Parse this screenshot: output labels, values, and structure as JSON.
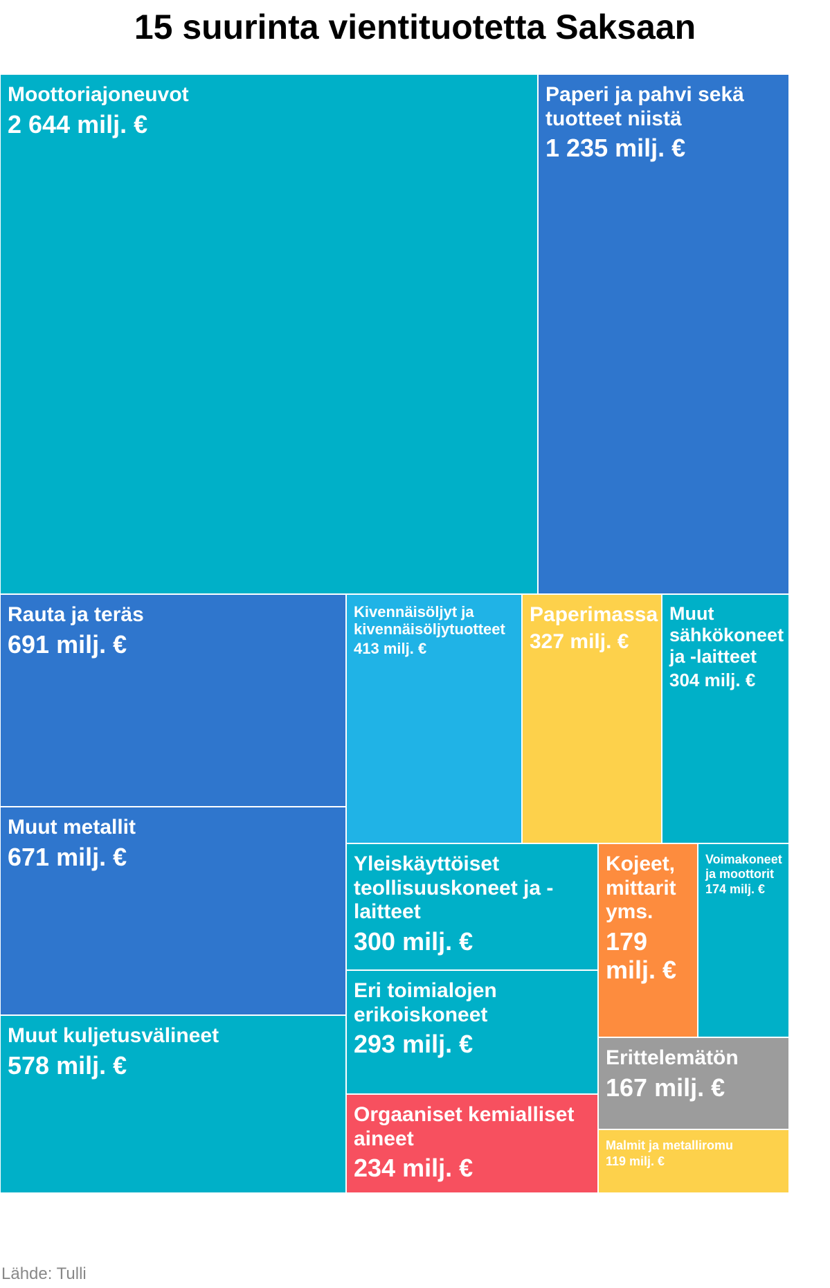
{
  "title": "15 suurinta vientituotetta Saksaan",
  "source": "Lähde: Tulli",
  "colors": {
    "teal": "#00b0c8",
    "blue": "#2f76cd",
    "lightblue": "#20b3e6",
    "yellow": "#fdd14b",
    "orange": "#fd8c3e",
    "red": "#f7505f",
    "gray": "#9c9c9c"
  },
  "chart_data": {
    "type": "treemap",
    "title": "15 suurinta vientituotetta Saksaan",
    "unit": "milj. €",
    "items": [
      {
        "name": "Moottoriajoneuvot",
        "value": 2644,
        "label": "2 644 milj. €",
        "color": "teal"
      },
      {
        "name": "Paperi ja pahvi sekä tuotteet niistä",
        "value": 1235,
        "label": "1 235 milj. €",
        "color": "blue"
      },
      {
        "name": "Rauta ja teräs",
        "value": 691,
        "label": "691 milj. €",
        "color": "blue"
      },
      {
        "name": "Muut metallit",
        "value": 671,
        "label": "671 milj. €",
        "color": "blue"
      },
      {
        "name": "Muut kuljetusvälineet",
        "value": 578,
        "label": "578 milj. €",
        "color": "teal"
      },
      {
        "name": "Kivennäisöljyt ja kivennäisöljytuotteet",
        "value": 413,
        "label": "413 milj. €",
        "color": "lightblue"
      },
      {
        "name": "Paperimassa",
        "value": 327,
        "label": "327 milj. €",
        "color": "yellow"
      },
      {
        "name": "Muut sähkökoneet ja -laitteet",
        "value": 304,
        "label": "304 milj. €",
        "color": "teal"
      },
      {
        "name": "Yleiskäyttöiset teollisuuskoneet ja -laitteet",
        "value": 300,
        "label": "300 milj. €",
        "color": "teal"
      },
      {
        "name": "Eri toimialojen erikoiskoneet",
        "value": 293,
        "label": "293 milj. €",
        "color": "teal"
      },
      {
        "name": "Orgaaniset kemialliset aineet",
        "value": 234,
        "label": "234 milj. €",
        "color": "red"
      },
      {
        "name": "Kojeet, mittarit yms.",
        "value": 179,
        "label": "179 milj. €",
        "color": "orange"
      },
      {
        "name": "Voimakoneet ja moottorit",
        "value": 174,
        "label": "174 milj. €",
        "color": "teal"
      },
      {
        "name": "Erittelemätön",
        "value": 167,
        "label": "167 milj. €",
        "color": "gray"
      },
      {
        "name": "Malmit ja metalliromu",
        "value": 119,
        "label": "119 milj. €",
        "color": "yellow"
      }
    ]
  }
}
